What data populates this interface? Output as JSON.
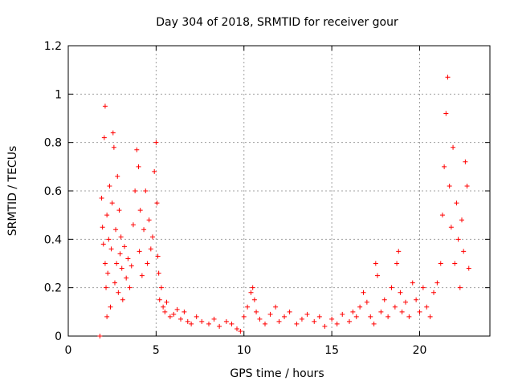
{
  "chart_data": {
    "type": "scatter",
    "title": "Day 304 of 2018, SRMTID for receiver gour",
    "xlabel": "GPS time / hours",
    "ylabel": "SRMTID / TECUs",
    "xlim": [
      0,
      24
    ],
    "ylim": [
      0,
      1.2
    ],
    "xticks": [
      0,
      5,
      10,
      15,
      20
    ],
    "xtick_labels": [
      "0",
      "5",
      "10",
      "15",
      "20"
    ],
    "yticks": [
      0,
      0.2,
      0.4,
      0.6,
      0.8,
      1,
      1.2
    ],
    "ytick_labels": [
      "0",
      "0.2",
      "0.4",
      "0.6",
      "0.8",
      "1",
      "1.2"
    ],
    "grid": true,
    "marker": "plus",
    "marker_color": "#ff0000",
    "series": [
      {
        "name": "SRMTID",
        "x": [
          1.8,
          1.9,
          1.95,
          2.0,
          2.05,
          2.1,
          2.1,
          2.15,
          2.2,
          2.2,
          2.25,
          2.3,
          2.35,
          2.4,
          2.45,
          2.5,
          2.55,
          2.6,
          2.65,
          2.7,
          2.75,
          2.8,
          2.85,
          2.9,
          2.95,
          3.0,
          3.05,
          3.1,
          3.2,
          3.3,
          3.4,
          3.5,
          3.6,
          3.7,
          3.8,
          3.9,
          4.0,
          4.05,
          4.1,
          4.2,
          4.3,
          4.4,
          4.5,
          4.6,
          4.7,
          4.8,
          4.9,
          5.0,
          5.05,
          5.1,
          5.15,
          5.2,
          5.3,
          5.4,
          5.5,
          5.6,
          5.8,
          6.0,
          6.2,
          6.4,
          6.6,
          6.8,
          7.0,
          7.3,
          7.6,
          8.0,
          8.3,
          8.6,
          9.0,
          9.3,
          9.6,
          9.8,
          10.0,
          10.2,
          10.4,
          10.5,
          10.6,
          10.7,
          10.9,
          11.2,
          11.5,
          11.8,
          12.0,
          12.3,
          12.6,
          13.0,
          13.3,
          13.6,
          14.0,
          14.3,
          14.6,
          15.0,
          15.3,
          15.6,
          16.0,
          16.2,
          16.4,
          16.6,
          16.8,
          17.0,
          17.2,
          17.4,
          17.5,
          17.6,
          17.8,
          18.0,
          18.2,
          18.4,
          18.6,
          18.7,
          18.8,
          18.9,
          19.0,
          19.2,
          19.4,
          19.6,
          19.8,
          20.0,
          20.2,
          20.4,
          20.6,
          20.8,
          21.0,
          21.2,
          21.3,
          21.4,
          21.5,
          21.6,
          21.7,
          21.8,
          21.9,
          22.0,
          22.1,
          22.2,
          22.3,
          22.4,
          22.5,
          22.6,
          22.7,
          22.8
        ],
        "y": [
          0.0,
          0.57,
          0.45,
          0.38,
          0.82,
          0.95,
          0.3,
          0.2,
          0.08,
          0.5,
          0.26,
          0.4,
          0.62,
          0.12,
          0.36,
          0.55,
          0.84,
          0.78,
          0.22,
          0.44,
          0.3,
          0.66,
          0.18,
          0.52,
          0.34,
          0.41,
          0.28,
          0.15,
          0.37,
          0.24,
          0.32,
          0.2,
          0.29,
          0.46,
          0.6,
          0.77,
          0.7,
          0.35,
          0.52,
          0.25,
          0.44,
          0.6,
          0.3,
          0.48,
          0.36,
          0.41,
          0.68,
          0.8,
          0.55,
          0.33,
          0.26,
          0.15,
          0.2,
          0.12,
          0.1,
          0.14,
          0.08,
          0.09,
          0.11,
          0.07,
          0.1,
          0.06,
          0.05,
          0.08,
          0.06,
          0.05,
          0.07,
          0.04,
          0.06,
          0.05,
          0.03,
          0.02,
          0.08,
          0.12,
          0.18,
          0.2,
          0.15,
          0.1,
          0.07,
          0.05,
          0.09,
          0.12,
          0.06,
          0.08,
          0.1,
          0.05,
          0.07,
          0.09,
          0.06,
          0.08,
          0.04,
          0.07,
          0.05,
          0.09,
          0.06,
          0.1,
          0.08,
          0.12,
          0.18,
          0.14,
          0.08,
          0.05,
          0.3,
          0.25,
          0.1,
          0.15,
          0.08,
          0.2,
          0.12,
          0.3,
          0.35,
          0.18,
          0.1,
          0.14,
          0.08,
          0.22,
          0.15,
          0.1,
          0.2,
          0.12,
          0.08,
          0.18,
          0.22,
          0.3,
          0.5,
          0.7,
          0.92,
          1.07,
          0.62,
          0.45,
          0.78,
          0.3,
          0.55,
          0.4,
          0.2,
          0.48,
          0.35,
          0.72,
          0.62,
          0.28
        ]
      }
    ]
  }
}
